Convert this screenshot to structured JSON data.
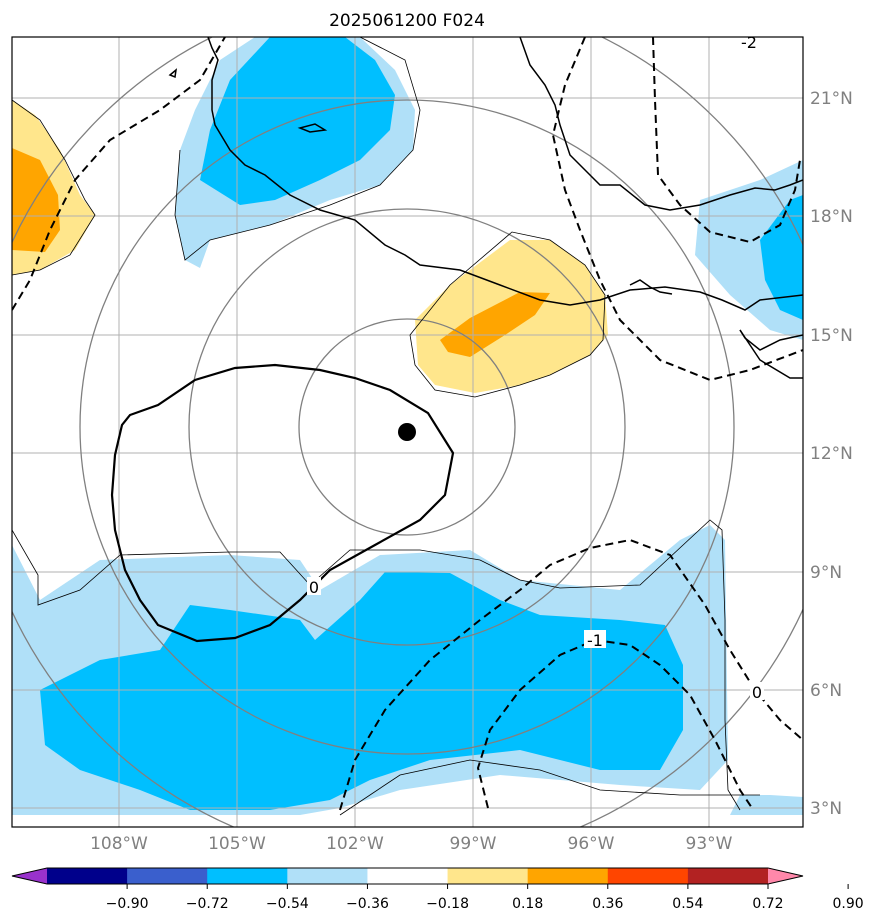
{
  "title": "2025061200 F024",
  "lon_ticks": [
    "108°W",
    "105°W",
    "102°W",
    "99°W",
    "96°W",
    "93°W"
  ],
  "lat_ticks": [
    "21°N",
    "18°N",
    "15°N",
    "12°N",
    "9°N",
    "6°N",
    "3°N"
  ],
  "contour_labels": {
    "zero_solid": "0",
    "zero_dashed": "0",
    "minus_one": "-1",
    "minus_two": "-2"
  },
  "colorbar": {
    "ticks": [
      "−0.90",
      "−0.72",
      "−0.54",
      "−0.36",
      "−0.18",
      "0.18",
      "0.36",
      "0.54",
      "0.72",
      "0.90"
    ],
    "colors": [
      "#9932cc",
      "#00008b",
      "#3a5fcd",
      "#00bfff",
      "#b0e0f8",
      "#ffffff",
      "#ffe68c",
      "#ffa500",
      "#ff4500",
      "#b22222",
      "#ff88aa"
    ]
  },
  "map": {
    "extent_lon": [
      -110,
      -90
    ],
    "extent_lat": [
      2.5,
      22.5
    ],
    "storm_center": {
      "lon": -100.7,
      "lat": 12.5
    }
  }
}
